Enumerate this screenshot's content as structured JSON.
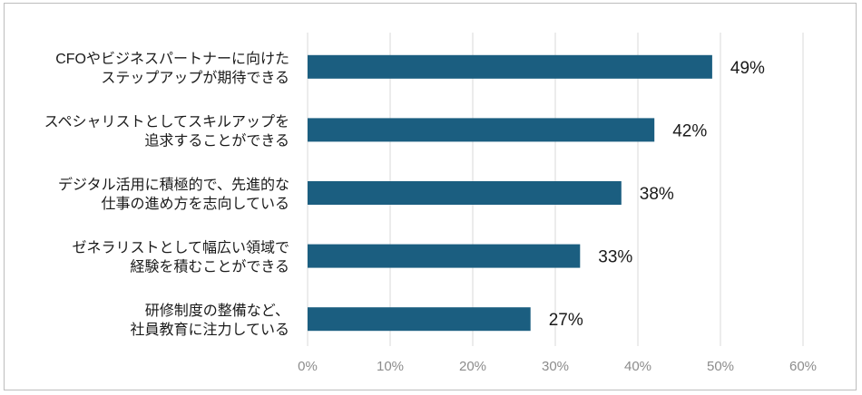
{
  "chart_data": {
    "type": "bar",
    "orientation": "horizontal",
    "categories": [
      [
        "CFOやビジネスパートナーに向けた",
        "ステップアップが期待できる"
      ],
      [
        "スペシャリストとしてスキルアップを",
        "追求することができる"
      ],
      [
        "デジタル活用に積極的で、先進的な",
        "仕事の進め方を志向している"
      ],
      [
        "ゼネラリストとして幅広い領域で",
        "経験を積むことができる"
      ],
      [
        "研修制度の整備など、",
        "社員教育に注力している"
      ]
    ],
    "values": [
      49,
      42,
      38,
      33,
      27
    ],
    "value_labels": [
      "49%",
      "42%",
      "38%",
      "33%",
      "27%"
    ],
    "xlim": [
      0,
      60
    ],
    "ticks": [
      0,
      10,
      20,
      30,
      40,
      50,
      60
    ],
    "tick_labels": [
      "0%",
      "10%",
      "20%",
      "30%",
      "40%",
      "50%",
      "60%"
    ],
    "grid": true,
    "bar_color": "#1b5e80",
    "grid_color": "#d9d9d9"
  }
}
